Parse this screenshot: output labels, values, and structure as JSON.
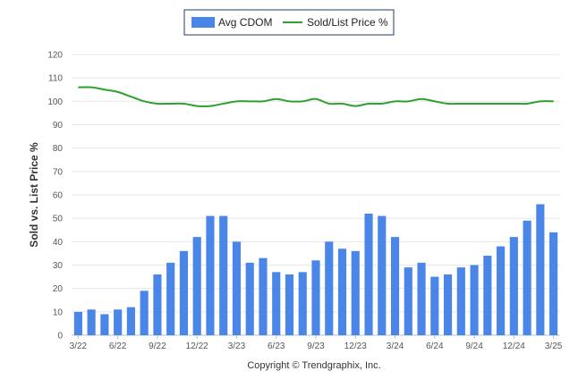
{
  "chart_data": {
    "type": "bar",
    "ylabel": "Sold vs. List Price %",
    "ylim": [
      0,
      120
    ],
    "yticks": [
      "0",
      "10",
      "20",
      "30",
      "40",
      "50",
      "60",
      "70",
      "80",
      "90",
      "100",
      "110",
      "120"
    ],
    "grid": true,
    "legend_position": "top-center",
    "x_tick_labels": [
      "3/22",
      "6/22",
      "9/22",
      "12/22",
      "3/23",
      "6/23",
      "9/23",
      "12/23",
      "3/24",
      "6/24",
      "9/24",
      "12/24",
      "3/25"
    ],
    "series": [
      {
        "name": "Avg CDOM",
        "type": "bar",
        "color": "#4a86e8",
        "values": [
          10,
          11,
          9,
          11,
          12,
          19,
          26,
          31,
          36,
          42,
          51,
          51,
          40,
          31,
          33,
          27,
          26,
          27,
          32,
          40,
          37,
          36,
          52,
          51,
          42,
          29,
          31,
          25,
          26,
          29,
          30,
          34,
          38,
          42,
          49,
          56,
          44
        ]
      },
      {
        "name": "Sold/List Price %",
        "type": "line",
        "color": "#2da12d",
        "values": [
          106,
          106,
          105,
          104,
          102,
          100,
          99,
          99,
          99,
          98,
          98,
          99,
          100,
          100,
          100,
          101,
          100,
          100,
          101,
          99,
          99,
          98,
          99,
          99,
          100,
          100,
          101,
          100,
          99,
          99,
          99,
          99,
          99,
          99,
          99,
          100,
          100
        ]
      }
    ]
  },
  "footer": {
    "copyright": "Copyright © Trendgraphix, Inc."
  }
}
